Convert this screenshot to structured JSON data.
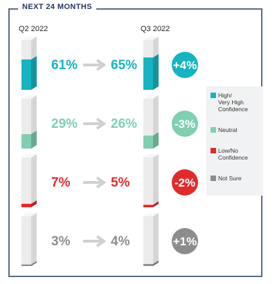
{
  "header": {
    "title": "NEXT 24 MONTHS"
  },
  "columns": {
    "left": "Q2 2022",
    "right": "Q3 2022"
  },
  "colors": {
    "high": "#16b3c1",
    "neutral": "#7fcfb0",
    "low": "#e02b2b",
    "notsure": "#8c8c8c",
    "arrow": "#d0d0d0",
    "bar_face": "#ececec",
    "bar_side": "#d6d6d6"
  },
  "chart_data": {
    "type": "bar",
    "categories": [
      "High/ Very High Confidence",
      "Neutral",
      "Low/No Confidence",
      "Not Sure"
    ],
    "series": [
      {
        "name": "Q2 2022",
        "values": [
          61,
          29,
          7,
          3
        ]
      },
      {
        "name": "Q3 2022",
        "values": [
          65,
          26,
          5,
          4
        ]
      }
    ],
    "labels_q2": [
      "61%",
      "29%",
      "7%",
      "3%"
    ],
    "labels_q3": [
      "65%",
      "26%",
      "5%",
      "4%"
    ],
    "changes": [
      "+4%",
      "-3%",
      "-2%",
      "+1%"
    ],
    "ylim": [
      0,
      100
    ],
    "legend_position": "right"
  },
  "legend": {
    "items": [
      {
        "label": "High/\nVery High\nConfidence",
        "color": "#16b3c1"
      },
      {
        "label": "Neutral",
        "color": "#7fcfb0"
      },
      {
        "label": "Low/No\nConfidence",
        "color": "#e02b2b"
      },
      {
        "label": "Not Sure",
        "color": "#8c8c8c"
      }
    ]
  }
}
